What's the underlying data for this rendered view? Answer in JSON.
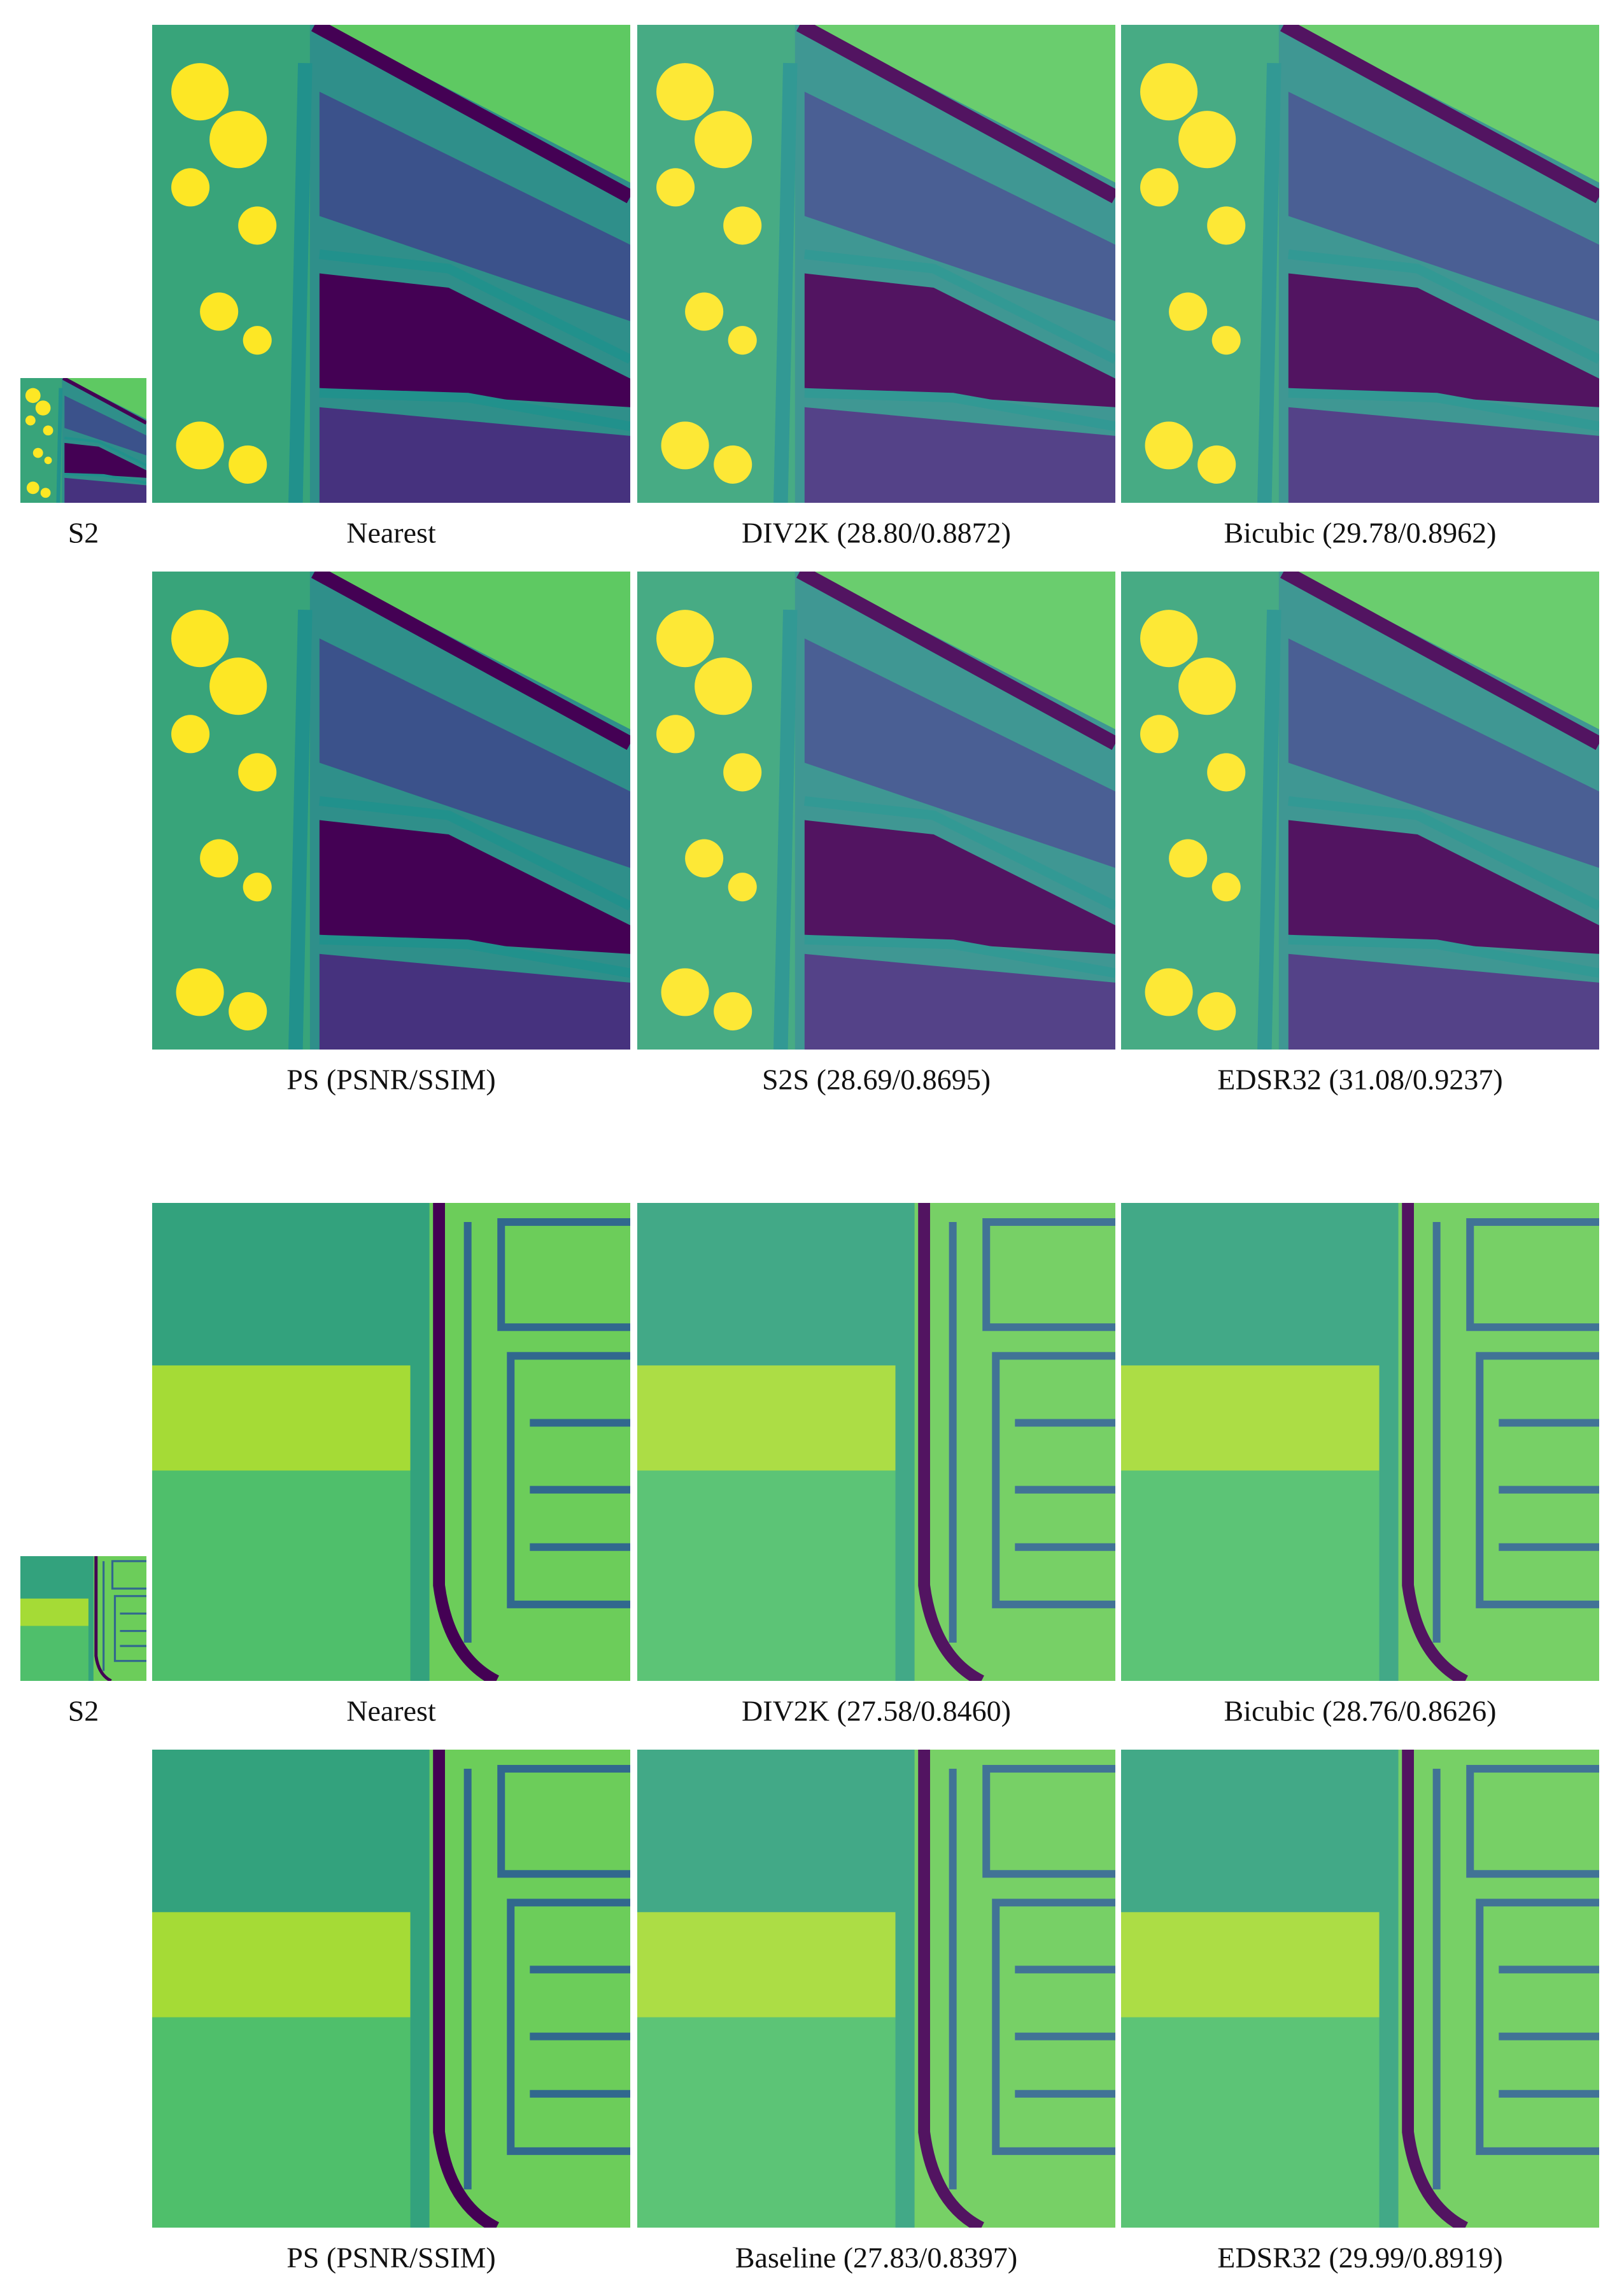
{
  "figures": [
    {
      "panels": [
        {
          "caption": "S2"
        },
        {
          "caption": "Nearest"
        },
        {
          "caption": "DIV2K (28.80/0.8872)"
        },
        {
          "caption": "Bicubic (29.78/0.8962)"
        },
        {
          "caption": "PS (PSNR/SSIM)"
        },
        {
          "caption": "S2S (28.69/0.8695)"
        },
        {
          "caption": "EDSR32 (31.08/0.9237)"
        }
      ]
    },
    {
      "panels": [
        {
          "caption": "S2"
        },
        {
          "caption": "Nearest"
        },
        {
          "caption": "DIV2K (27.58/0.8460)"
        },
        {
          "caption": "Bicubic (28.76/0.8626)"
        },
        {
          "caption": "PS (PSNR/SSIM)"
        },
        {
          "caption": "Baseline (27.83/0.8397)"
        },
        {
          "caption": "EDSR32 (29.99/0.8919)"
        }
      ]
    }
  ]
}
